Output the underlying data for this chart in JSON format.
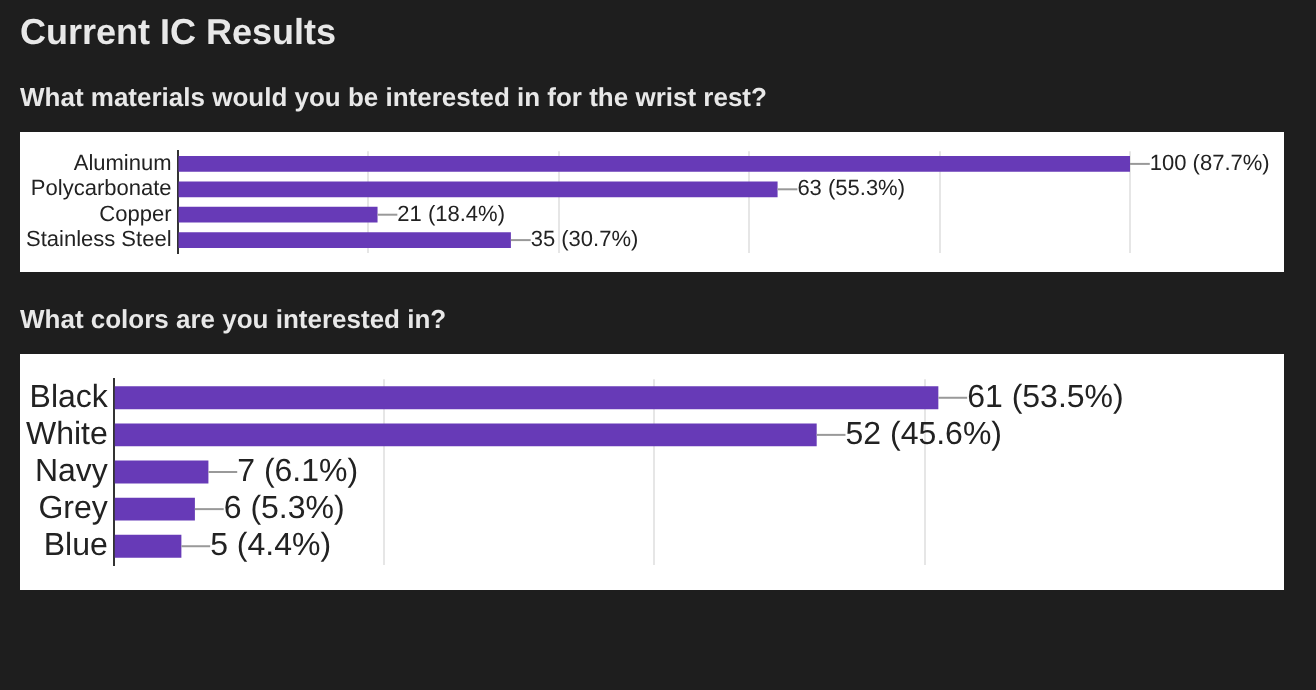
{
  "chart_data": [
    {
      "type": "bar",
      "orientation": "horizontal",
      "title": "Current IC Results",
      "subtitle": "What materials would you be interested in for the wrist rest?",
      "categories": [
        "Aluminum",
        "Polycarbonate",
        "Copper",
        "Stainless Steel"
      ],
      "values": [
        100,
        63,
        21,
        35
      ],
      "value_labels": [
        "100 (87.7%)",
        "63 (55.3%)",
        "21 (18.4%)",
        "35 (30.7%)"
      ],
      "color": "#673ab7",
      "xticks": [
        {
          "value": 0,
          "label": null
        },
        {
          "value": 20,
          "label": null
        },
        {
          "value": 40,
          "label": null
        },
        {
          "value": 60,
          "label": null
        },
        {
          "value": 80,
          "label": null
        },
        {
          "value": 100,
          "label": null
        }
      ],
      "grid": "x",
      "tick_labels": "y",
      "legend": false
    },
    {
      "type": "bar",
      "orientation": "horizontal",
      "title": "What colors are you interested in?",
      "categories": [
        "Black",
        "White",
        "Navy",
        "Grey",
        "Blue"
      ],
      "values": [
        61,
        52,
        7,
        6,
        5
      ],
      "value_labels": [
        "61 (53.5%)",
        "52 (45.6%)",
        "7 (6.1%)",
        "6 (5.3%)",
        "5 (4.4%)"
      ],
      "color": "#673ab7",
      "xticks": [
        {
          "value": 0,
          "label": null
        },
        {
          "value": 20,
          "label": null
        },
        {
          "value": 40,
          "label": null
        },
        {
          "value": 60,
          "label": null
        }
      ],
      "grid": "x",
      "tick_labels": "y",
      "legend": false
    }
  ]
}
